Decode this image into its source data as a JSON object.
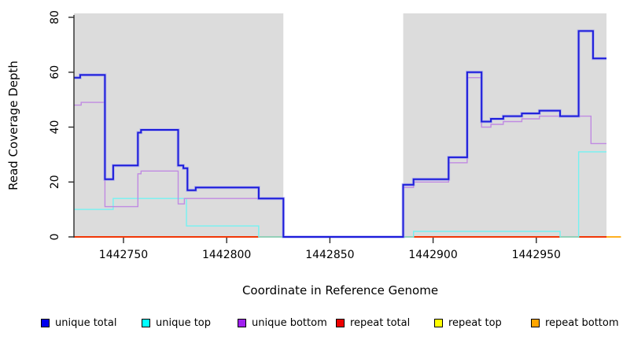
{
  "figure": {
    "xlabel": "Coordinate in Reference Genome",
    "ylabel": "Read Coverage Depth"
  },
  "chart_data": {
    "type": "line",
    "subtype": "step",
    "title": "",
    "xlabel": "Coordinate in Reference Genome",
    "ylabel": "Read Coverage Depth",
    "xlim": [
      1442726,
      1442984
    ],
    "ylim": [
      0,
      80
    ],
    "x_ticks": [
      1442750,
      1442800,
      1442850,
      1442900,
      1442950
    ],
    "y_ticks": [
      0,
      20,
      40,
      60,
      80
    ],
    "grid": false,
    "legend_position": "bottom",
    "background_color": "#ffffff",
    "band_color": "#dcdcdc",
    "covered_regions": [
      [
        1442726,
        1442827.5
      ],
      [
        1442885.5,
        1442984
      ]
    ],
    "gap_region": [
      1442827.5,
      1442885.5
    ],
    "series": [
      {
        "name": "unique total",
        "legend_color": "#0000ee",
        "line_color": "#1d1dda",
        "line_width": 2,
        "halo_color": "#9595f5",
        "draw_phase": "above_gap",
        "points": [
          [
            1442726,
            58
          ],
          [
            1442729,
            59
          ],
          [
            1442741,
            21
          ],
          [
            1442745,
            26
          ],
          [
            1442757,
            38
          ],
          [
            1442758.5,
            39
          ],
          [
            1442776.5,
            26
          ],
          [
            1442779,
            25
          ],
          [
            1442781,
            17
          ],
          [
            1442785,
            18
          ],
          [
            1442815.5,
            14
          ],
          [
            1442827.5,
            0
          ],
          [
            1442885.5,
            19
          ],
          [
            1442890.5,
            21
          ],
          [
            1442907.5,
            29
          ],
          [
            1442916.5,
            60
          ],
          [
            1442923.5,
            42
          ],
          [
            1442928,
            43
          ],
          [
            1442934,
            44
          ],
          [
            1442943,
            45
          ],
          [
            1442951.5,
            46
          ],
          [
            1442961.5,
            44
          ],
          [
            1442970.5,
            75
          ],
          [
            1442977.5,
            65
          ],
          [
            1442984,
            65
          ]
        ]
      },
      {
        "name": "unique top",
        "legend_color": "#00ffff",
        "line_color": "#74f2f2",
        "line_width": 1.4,
        "draw_phase": "above_gap",
        "points": [
          [
            1442726,
            10
          ],
          [
            1442745,
            14
          ],
          [
            1442780.5,
            4
          ],
          [
            1442815.5,
            0
          ],
          [
            1442890.5,
            2
          ],
          [
            1442961.5,
            0
          ],
          [
            1442970.5,
            31
          ],
          [
            1442984,
            31
          ]
        ]
      },
      {
        "name": "unique bottom",
        "legend_color": "#a020f0",
        "line_color": "#c08ae2",
        "line_width": 1.4,
        "draw_phase": "above_gap",
        "points": [
          [
            1442726,
            48
          ],
          [
            1442729.5,
            49
          ],
          [
            1442741,
            11
          ],
          [
            1442757,
            23
          ],
          [
            1442758.5,
            24
          ],
          [
            1442776.5,
            12
          ],
          [
            1442779.5,
            14
          ],
          [
            1442827.5,
            0
          ],
          [
            1442885.5,
            18
          ],
          [
            1442890.5,
            20
          ],
          [
            1442907.5,
            27
          ],
          [
            1442916.5,
            58
          ],
          [
            1442923.5,
            40
          ],
          [
            1442928,
            41
          ],
          [
            1442934,
            42
          ],
          [
            1442943,
            43
          ],
          [
            1442951.5,
            44
          ],
          [
            1442976.5,
            34
          ],
          [
            1442984,
            34
          ]
        ]
      },
      {
        "name": "repeat total",
        "legend_color": "#ee0000",
        "line_color": "#ee0000",
        "line_width": 1.4,
        "draw_phase": "below_gap",
        "points": [
          [
            1442726,
            0
          ],
          [
            1442984,
            0
          ]
        ]
      },
      {
        "name": "repeat top",
        "legend_color": "#ffff00",
        "line_color": "#ffff00",
        "line_width": 1.4,
        "draw_phase": "below_gap",
        "points": [
          [
            1442726,
            0
          ],
          [
            1442984,
            0
          ]
        ]
      },
      {
        "name": "repeat bottom",
        "legend_color": "#ffa500",
        "line_color": "#ffa500",
        "line_width": 1.8,
        "draw_phase": "below_gap",
        "points": [
          [
            1442726,
            0
          ],
          [
            1442991,
            0
          ]
        ]
      }
    ],
    "legend": [
      {
        "label": "unique total",
        "color": "#0000ee"
      },
      {
        "label": "unique top",
        "color": "#00ffff"
      },
      {
        "label": "unique bottom",
        "color": "#a020f0"
      },
      {
        "label": "repeat total",
        "color": "#ee0000"
      },
      {
        "label": "repeat top",
        "color": "#ffff00"
      },
      {
        "label": "repeat bottom",
        "color": "#ffa500"
      }
    ]
  }
}
